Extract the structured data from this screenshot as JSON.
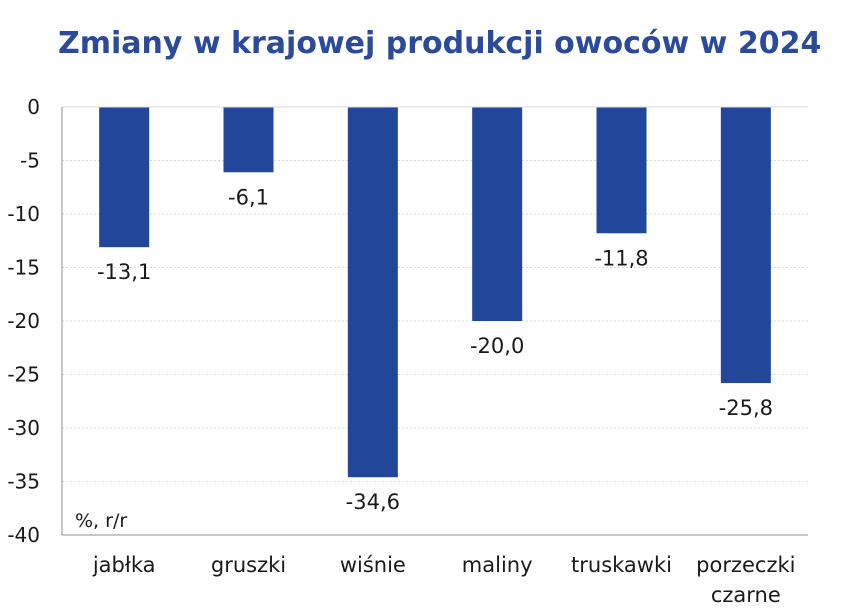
{
  "chart_data": {
    "type": "bar",
    "title": "Zmiany w krajowej produkcji owoców w 2024",
    "unit_label": "%, r/r",
    "categories": [
      [
        "jabłka"
      ],
      [
        "gruszki"
      ],
      [
        "wiśnie"
      ],
      [
        "maliny"
      ],
      [
        "truskawki"
      ],
      [
        "porzeczki",
        "czarne"
      ]
    ],
    "values": [
      -13.1,
      -6.1,
      -34.6,
      -20.0,
      -11.8,
      -25.8
    ],
    "value_labels": [
      "-13,1",
      "-6,1",
      "-34,6",
      "-20,0",
      "-11,8",
      "-25,8"
    ],
    "yticks": [
      0,
      -5,
      -10,
      -15,
      -20,
      -25,
      -30,
      -35,
      -40
    ],
    "ytick_labels": [
      "0",
      "-5",
      "-10",
      "-15",
      "-20",
      "-25",
      "-30",
      "-35",
      "-40"
    ],
    "ylim": [
      -40,
      0
    ],
    "xlabel": "",
    "ylabel": "",
    "grid": true,
    "legend": "none",
    "colors": {
      "bar": "#22479a",
      "title": "#2b4a9a",
      "grid": "#d9d9d9",
      "axis": "#8c8c8c",
      "text": "#1a1a1a"
    }
  }
}
